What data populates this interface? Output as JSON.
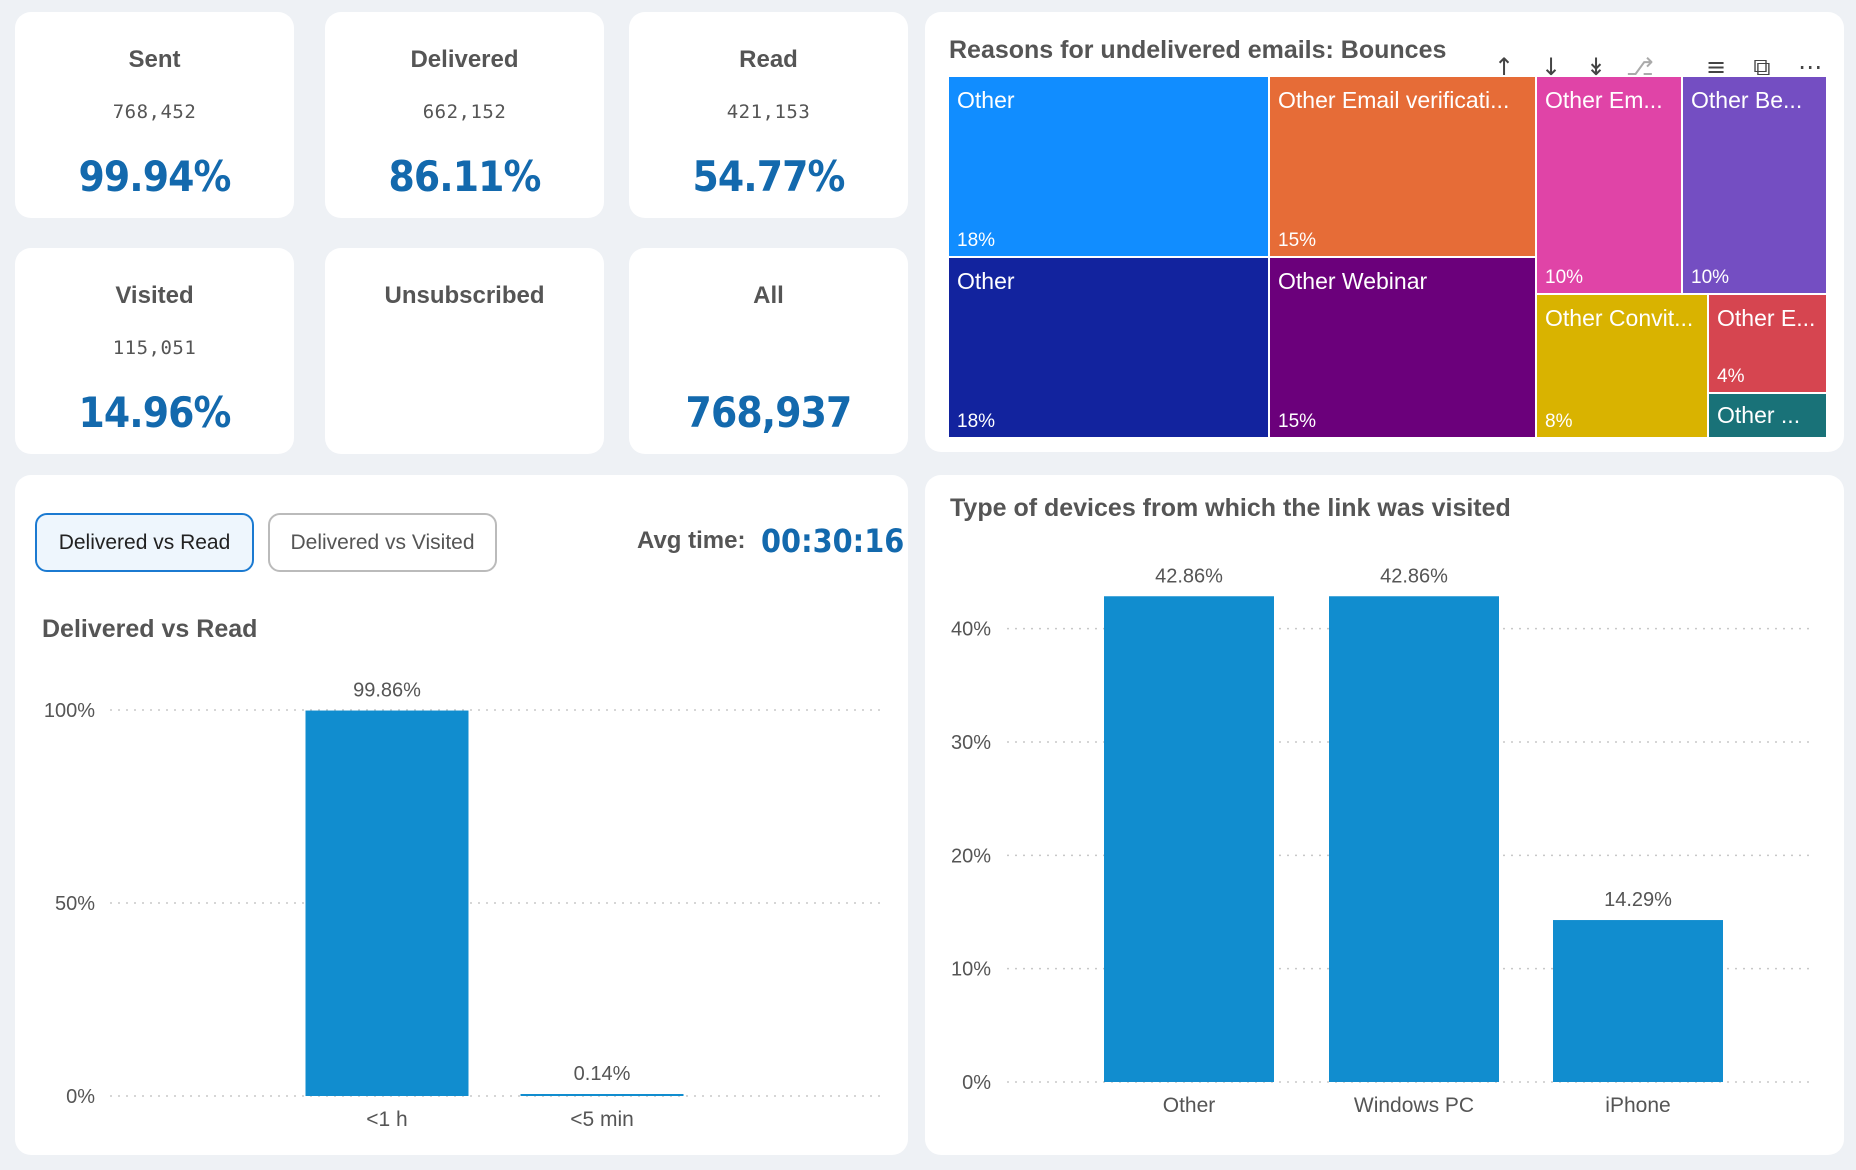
{
  "kpis": {
    "sent": {
      "title": "Sent",
      "count": "768,452",
      "pct": "99.94%"
    },
    "delivered": {
      "title": "Delivered",
      "count": "662,152",
      "pct": "86.11%"
    },
    "read": {
      "title": "Read",
      "count": "421,153",
      "pct": "54.77%"
    },
    "visited": {
      "title": "Visited",
      "count": "115,051",
      "pct": "14.96%"
    },
    "unsubscribed": {
      "title": "Unsubscribed",
      "count": "",
      "pct": ""
    },
    "all": {
      "title": "All",
      "count": "",
      "pct": "768,937"
    }
  },
  "treemap": {
    "title": "Reasons for undelivered emails: Bounces",
    "toolbar": [
      "arrow-up-icon",
      "arrow-down-icon",
      "double-arrow-down-icon",
      "drill-hierarchy-icon",
      "filter-icon",
      "focus-mode-icon",
      "more-options-icon"
    ],
    "tiles": [
      {
        "label": "Other",
        "value": "18%",
        "color": "#118dff"
      },
      {
        "label": "Other",
        "value": "18%",
        "color": "#12239e"
      },
      {
        "label": "Other Email verificati...",
        "value": "15%",
        "color": "#e66c37"
      },
      {
        "label": "Other Webinar",
        "value": "15%",
        "color": "#6b007b"
      },
      {
        "label": "Other Em...",
        "value": "10%",
        "color": "#e044a7"
      },
      {
        "label": "Other Be...",
        "value": "10%",
        "color": "#744ec2"
      },
      {
        "label": "Other Convit...",
        "value": "8%",
        "color": "#d9b300"
      },
      {
        "label": "Other E...",
        "value": "4%",
        "color": "#d64550"
      },
      {
        "label": "Other ...",
        "value": "",
        "color": "#197278"
      }
    ]
  },
  "read_panel": {
    "tabs": [
      "Delivered vs Read",
      "Delivered vs Visited"
    ],
    "active_tab": "Delivered vs Read",
    "avg_time_label": "Avg time:",
    "avg_time_value": "00:30:16",
    "chart_title": "Delivered vs Read"
  },
  "devices_panel": {
    "title": "Type of devices from which the link was visited"
  },
  "chart_data": [
    {
      "type": "bar",
      "title": "Delivered vs Read",
      "categories": [
        "<1 h",
        "<5 min"
      ],
      "values": [
        99.86,
        0.14
      ],
      "data_labels": [
        "99.86%",
        "0.14%"
      ],
      "ylim": [
        0,
        100
      ],
      "yticks": [
        "0%",
        "50%",
        "100%"
      ],
      "ytick_values": [
        0,
        50,
        100
      ],
      "color": "#118dcf",
      "grid": true
    },
    {
      "type": "bar",
      "title": "Type of devices from which the link was visited",
      "categories": [
        "Other",
        "Windows PC",
        "iPhone"
      ],
      "values": [
        42.86,
        42.86,
        14.29
      ],
      "data_labels": [
        "42.86%",
        "42.86%",
        "14.29%"
      ],
      "ylim": [
        0,
        45
      ],
      "yticks": [
        "0%",
        "10%",
        "20%",
        "30%",
        "40%"
      ],
      "ytick_values": [
        0,
        10,
        20,
        30,
        40
      ],
      "color": "#118dcf",
      "grid": true
    }
  ]
}
